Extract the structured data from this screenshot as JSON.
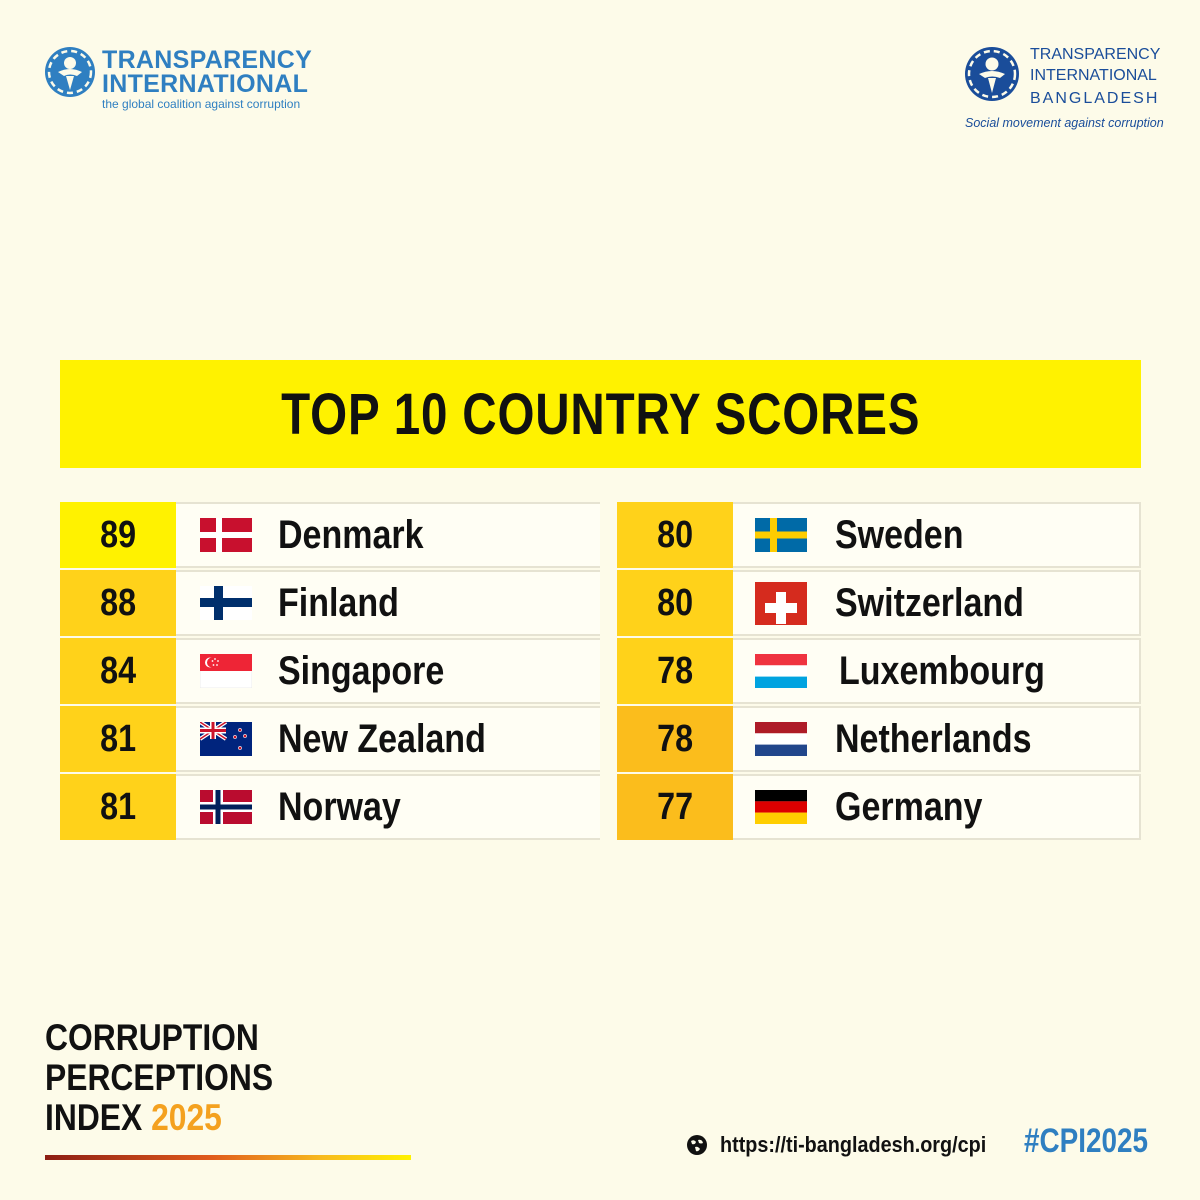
{
  "logos": {
    "left": {
      "line1": "TRANSPARENCY",
      "line2": "INTERNATIONAL",
      "tagline": "the global coalition against corruption"
    },
    "right": {
      "line1": "TRANSPARENCY",
      "line2": "INTERNATIONAL",
      "line3": "BANGLADESH",
      "tagline": "Social movement against corruption"
    }
  },
  "banner": {
    "title": "TOP 10 COUNTRY SCORES"
  },
  "rankings": {
    "left": [
      {
        "score": "89",
        "country": "Denmark",
        "flag": "denmark-flag-icon",
        "score_color": "#fff200"
      },
      {
        "score": "88",
        "country": "Finland",
        "flag": "finland-flag-icon",
        "score_color": "#ffd21a"
      },
      {
        "score": "84",
        "country": "Singapore",
        "flag": "singapore-flag-icon",
        "score_color": "#ffd21a"
      },
      {
        "score": "81",
        "country": "New Zealand",
        "flag": "new-zealand-flag-icon",
        "score_color": "#ffd21a"
      },
      {
        "score": "81",
        "country": "Norway",
        "flag": "norway-flag-icon",
        "score_color": "#ffd21a"
      }
    ],
    "right": [
      {
        "score": "80",
        "country": "Sweden",
        "flag": "sweden-flag-icon",
        "score_color": "#ffd21a"
      },
      {
        "score": "80",
        "country": "Switzerland",
        "flag": "switzerland-flag-icon",
        "score_color": "#ffd21a"
      },
      {
        "score": "78",
        "country": "Luxembourg",
        "flag": "luxembourg-flag-icon",
        "score_color": "#ffd21a"
      },
      {
        "score": "78",
        "country": "Netherlands",
        "flag": "netherlands-flag-icon",
        "score_color": "#fbbd1c"
      },
      {
        "score": "77",
        "country": "Germany",
        "flag": "germany-flag-icon",
        "score_color": "#fbbd1c"
      }
    ]
  },
  "footer": {
    "cpi_line1": "CORRUPTION",
    "cpi_line2": "PERCEPTIONS",
    "cpi_line3_prefix": "INDEX ",
    "cpi_year": "2025",
    "url": "https://ti-bangladesh.org/cpi",
    "hashtag": "#CPI2025"
  },
  "colors": {
    "background": "#fdfbe9",
    "banner": "#fff200",
    "brand_blue": "#2f7fc1",
    "accent_orange": "#f4a11f"
  }
}
